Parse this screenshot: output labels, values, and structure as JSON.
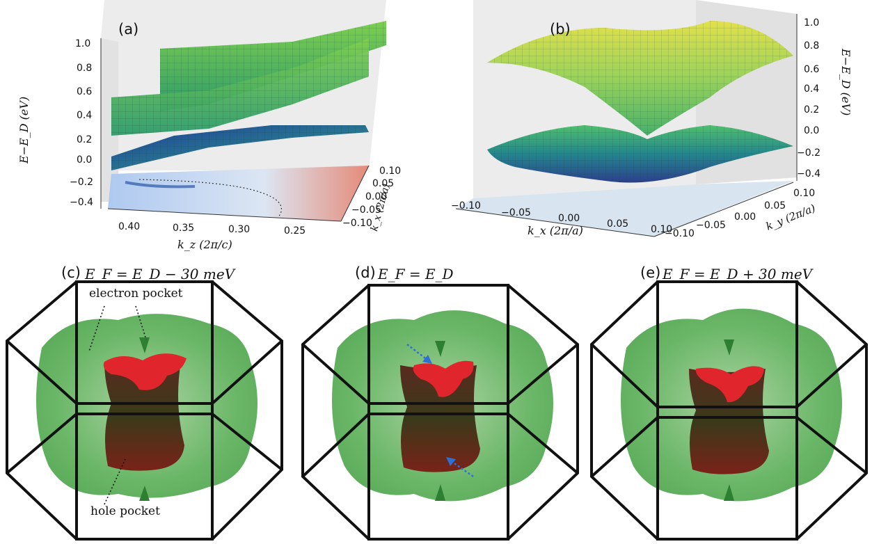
{
  "panels": {
    "a": {
      "label": "(a)",
      "zlabel": "E−E_D (eV)",
      "xlabel": "k_z (2π/c)",
      "ylabel": "k_x (2π/a)",
      "z_ticks": [
        "1.0",
        "0.8",
        "0.6",
        "0.4",
        "0.2",
        "0.0",
        "−0.2",
        "−0.4"
      ],
      "x_ticks": [
        "0.40",
        "0.35",
        "0.30",
        "0.25"
      ],
      "y_ticks": [
        "0.10",
        "0.05",
        "0.00",
        "−0.05",
        "−0.10"
      ]
    },
    "b": {
      "label": "(b)",
      "zlabel": "E−E_D (eV)",
      "xlabel": "k_x (2π/a)",
      "ylabel": "k_y (2π/a)",
      "z_ticks": [
        "1.0",
        "0.8",
        "0.6",
        "0.4",
        "0.2",
        "0.0",
        "−0.2",
        "−0.4"
      ],
      "x_ticks": [
        "−0.10",
        "−0.05",
        "0.00",
        "0.05",
        "0.10"
      ],
      "y_ticks": [
        "0.10",
        "0.05",
        "0.00",
        "−0.05",
        "−0.10"
      ]
    },
    "c": {
      "label": "(c)",
      "caption": "E_F = E_D − 30 meV",
      "electron_note": "electron pocket",
      "hole_note": "hole pocket"
    },
    "d": {
      "label": "(d)",
      "caption": "E_F = E_D"
    },
    "e": {
      "label": "(e)",
      "caption": "E_F = E_D + 30 meV"
    }
  },
  "colors": {
    "electron_pocket": "#3fae3f",
    "hole_pocket": "#e0262c",
    "arrow": "#2f6fd6"
  }
}
